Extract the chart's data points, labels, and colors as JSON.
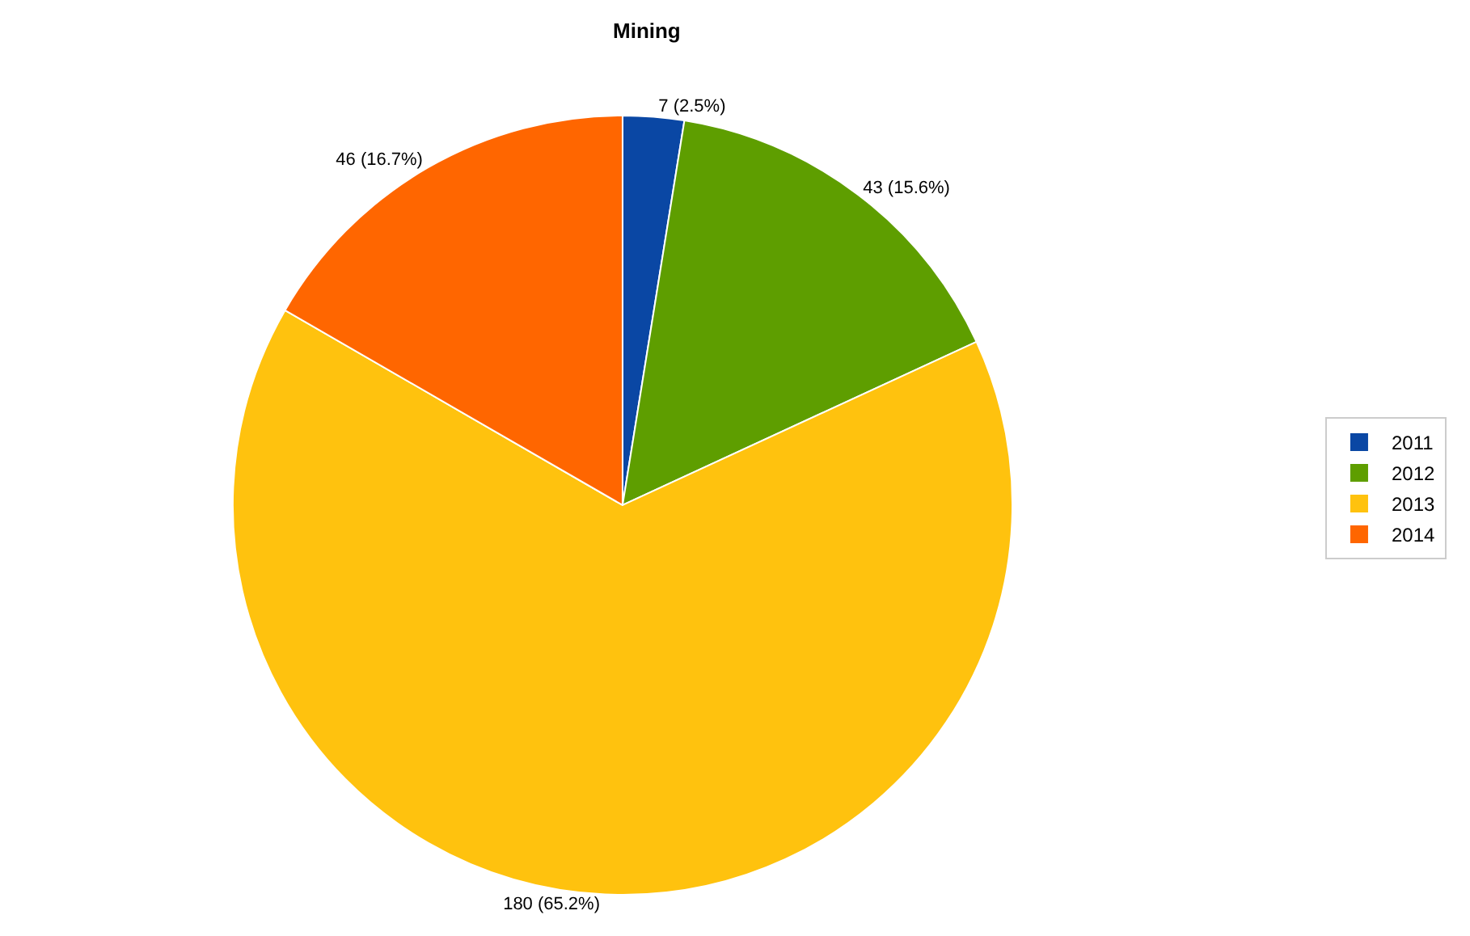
{
  "chart_data": {
    "type": "pie",
    "title": "Mining",
    "categories": [
      "2011",
      "2012",
      "2013",
      "2014"
    ],
    "values": [
      7,
      43,
      180,
      46
    ],
    "colors": [
      "#0a47a4",
      "#5e9e00",
      "#ffc20e",
      "#ff6600"
    ],
    "value_labels": [
      "7 (2.5%)",
      "43 (15.6%)",
      "180 (65.2%)",
      "46 (16.7%)"
    ],
    "legend": "right"
  }
}
